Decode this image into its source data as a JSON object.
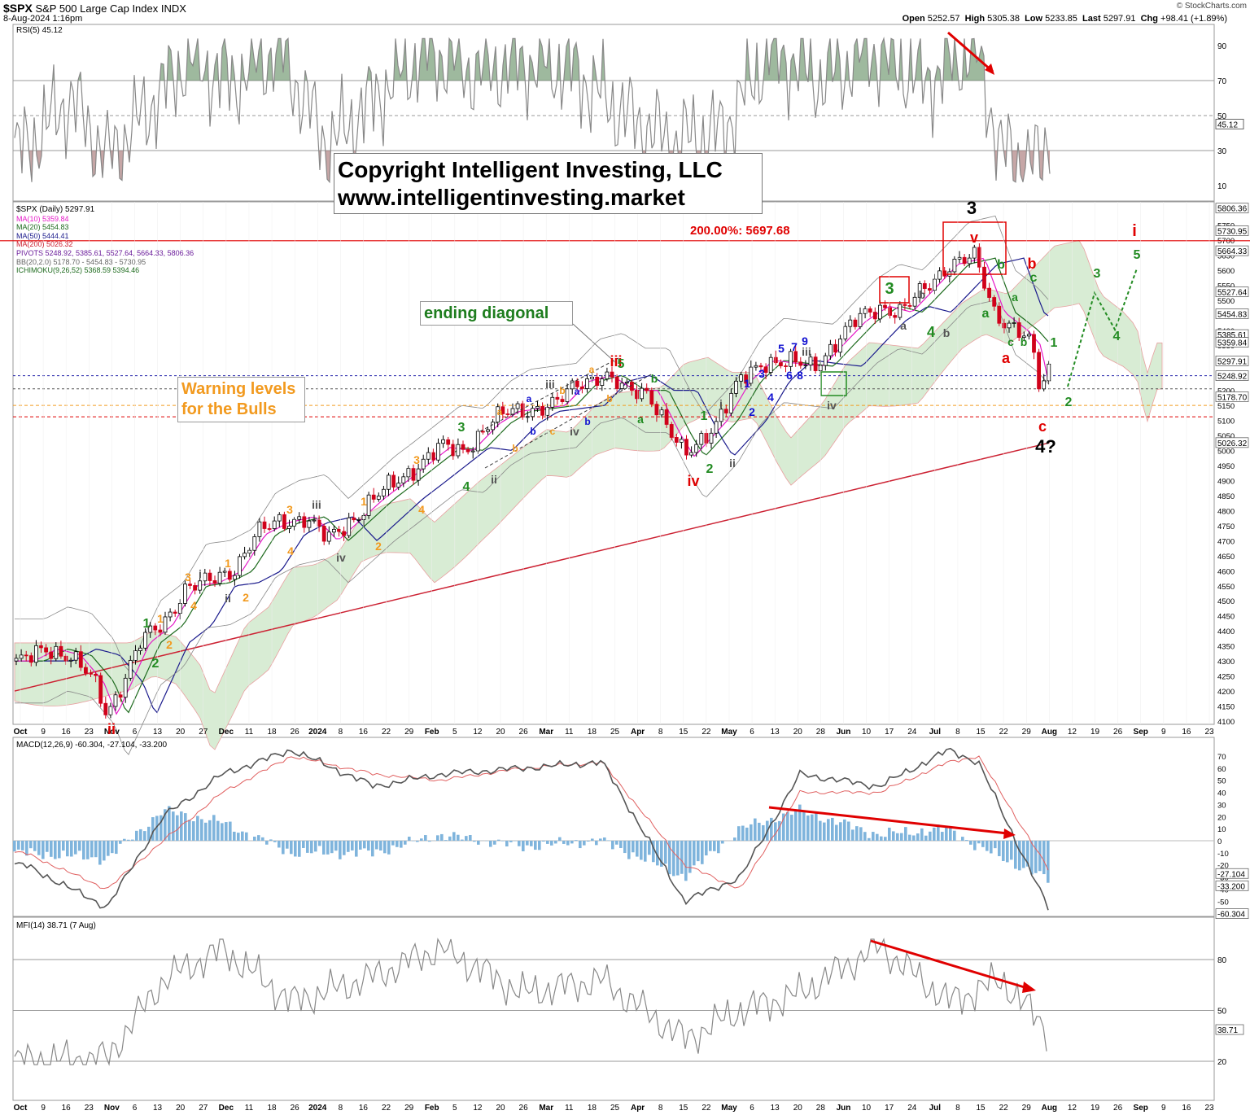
{
  "header": {
    "symbol": "$SPX",
    "name": "S&P 500 Large Cap Index",
    "exchange": "INDX",
    "date": "8-Aug-2024 1:16pm",
    "open_label": "Open",
    "open": "5252.57",
    "high_label": "High",
    "high": "5305.38",
    "low_label": "Low",
    "low": "5233.85",
    "last_label": "Last",
    "last": "5297.91",
    "chg_label": "Chg",
    "chg": "+98.41 (+1.89%)",
    "brand": "© StockCharts.com"
  },
  "copyright": {
    "line1": "Copyright Intelligent Investing, LLC",
    "line2": "www.intelligentinvesting.market"
  },
  "boxes": {
    "ending_diagonal": "ending diagonal",
    "warning_line1": "Warning levels",
    "warning_line2": "for the Bulls"
  },
  "colors": {
    "up": "#000000",
    "down": "#d0021b",
    "ma10": "#e619c8",
    "ma20": "#1e6b1e",
    "ma50": "#1a1a8c",
    "ma200": "#cc2233",
    "bb": "#888888",
    "cloud": "#d8ecd4",
    "hist": "#7fb4dc",
    "wave_red": "#e00000",
    "wave_green": "#228b22",
    "wave_orange": "#f29a1f",
    "wave_blue": "#1010d0",
    "wave_grey": "#555555"
  },
  "chart_data": [
    {
      "type": "line",
      "panel": "RSI",
      "label": "RSI(5) 45.12",
      "ylim": [
        0,
        100
      ],
      "ticks": [
        10,
        30,
        50,
        70,
        90
      ],
      "current_value_label": "45.12",
      "x": [
        "2023-10-02",
        "2023-10-16",
        "2023-10-27",
        "2023-11-06",
        "2023-11-20",
        "2023-12-04",
        "2023-12-18",
        "2024-01-02",
        "2024-01-16",
        "2024-02-01",
        "2024-02-15",
        "2024-03-01",
        "2024-03-15",
        "2024-04-01",
        "2024-04-15",
        "2024-04-30",
        "2024-05-15",
        "2024-05-31",
        "2024-06-14",
        "2024-07-01",
        "2024-07-16",
        "2024-07-24",
        "2024-08-05",
        "2024-08-08"
      ],
      "values": [
        30,
        60,
        25,
        48,
        82,
        70,
        88,
        32,
        60,
        88,
        75,
        80,
        78,
        50,
        35,
        40,
        88,
        70,
        88,
        70,
        90,
        28,
        22,
        45.12
      ]
    },
    {
      "type": "candlestick",
      "panel": "Price",
      "label": "$SPX (Daily) 5297.91",
      "ylim": [
        4100,
        5800
      ],
      "ticks": [
        4100,
        4150,
        4200,
        4250,
        4300,
        4350,
        4400,
        4450,
        4500,
        4550,
        4600,
        4650,
        4700,
        4750,
        4800,
        4850,
        4900,
        4950,
        5000,
        5050,
        5100,
        5150,
        5200,
        5250,
        5300,
        5350,
        5400,
        5450,
        5500,
        5550,
        5600,
        5650,
        5700,
        5750,
        5800
      ],
      "right_labels": [
        "5806.36",
        "5730.95",
        "5664.33",
        "5527.64",
        "5454.83",
        "5385.61",
        "5359.84",
        "5297.91",
        "5248.92",
        "5178.70",
        "5026.32"
      ],
      "legend": [
        "$SPX (Daily) 5297.91",
        "MA(10) 5359.84",
        "MA(20) 5454.83",
        "MA(50) 5444.41",
        "MA(200) 5026.32",
        "PIVOTS 5248.92, 5385.61, 5527.64, 5664.33, 5806.36",
        "BB(20,2.0) 5178.70 - 5454.83 - 5730.95",
        "ICHIMOKU(9,26,52) 5368.59 5394.46"
      ],
      "fib_label": "200.00%: 5697.68",
      "fib_level": 5697.68,
      "pivot_levels": [
        5248.92,
        5178.7
      ],
      "warning_levels": [
        5150,
        5110
      ],
      "x": [
        "2023-10-02",
        "2023-10-09",
        "2023-10-16",
        "2023-10-23",
        "2023-10-27",
        "2023-11-06",
        "2023-11-13",
        "2023-11-20",
        "2023-11-27",
        "2023-12-04",
        "2023-12-11",
        "2023-12-18",
        "2023-12-26",
        "2024-01-02",
        "2024-01-08",
        "2024-01-16",
        "2024-01-22",
        "2024-01-29",
        "2024-02-05",
        "2024-02-12",
        "2024-02-20",
        "2024-02-26",
        "2024-03-04",
        "2024-03-11",
        "2024-03-18",
        "2024-03-25",
        "2024-04-01",
        "2024-04-08",
        "2024-04-15",
        "2024-04-19",
        "2024-04-29",
        "2024-05-06",
        "2024-05-13",
        "2024-05-20",
        "2024-05-28",
        "2024-06-03",
        "2024-06-10",
        "2024-06-17",
        "2024-06-24",
        "2024-07-01",
        "2024-07-08",
        "2024-07-16",
        "2024-07-22",
        "2024-07-29",
        "2024-08-02",
        "2024-08-05",
        "2024-08-08"
      ],
      "values": [
        4300,
        4340,
        4320,
        4230,
        4120,
        4360,
        4420,
        4550,
        4560,
        4600,
        4720,
        4760,
        4780,
        4700,
        4760,
        4840,
        4890,
        4950,
        5010,
        5000,
        5090,
        5130,
        5140,
        5150,
        5230,
        5250,
        5200,
        5200,
        5050,
        4980,
        5100,
        5230,
        5300,
        5290,
        5280,
        5350,
        5430,
        5480,
        5460,
        5540,
        5620,
        5640,
        5460,
        5400,
        5350,
        5190,
        5297.91
      ]
    },
    {
      "type": "bar+line",
      "panel": "MACD",
      "label": "MACD(12,26,9) -60.304, -27.104, -33.200",
      "ylim": [
        -60,
        80
      ],
      "ticks": [
        -50,
        -40,
        -30,
        -20,
        -10,
        0,
        10,
        20,
        30,
        40,
        50,
        60,
        70
      ],
      "right_labels": [
        "-27.104",
        "-33.200",
        "-60.304"
      ],
      "x": [
        "2023-10-02",
        "2023-10-27",
        "2023-11-13",
        "2023-12-01",
        "2023-12-22",
        "2024-01-16",
        "2024-02-05",
        "2024-03-01",
        "2024-03-25",
        "2024-04-19",
        "2024-05-06",
        "2024-05-24",
        "2024-06-17",
        "2024-07-08",
        "2024-07-17",
        "2024-08-08"
      ],
      "macd": [
        -20,
        -55,
        20,
        55,
        75,
        45,
        55,
        60,
        65,
        -50,
        -30,
        55,
        45,
        75,
        65,
        -60.304
      ],
      "signal": [
        -10,
        -40,
        0,
        40,
        70,
        55,
        50,
        60,
        65,
        -20,
        -40,
        40,
        40,
        65,
        70,
        -27.104
      ],
      "histogram": [
        -10,
        -15,
        25,
        15,
        -10,
        -10,
        5,
        -5,
        0,
        -30,
        10,
        25,
        5,
        10,
        -5,
        -33.2
      ]
    },
    {
      "type": "line",
      "panel": "MFI",
      "label": "MFI(14) 38.71 (7 Aug)",
      "ylim": [
        15,
        95
      ],
      "ticks": [
        20,
        50,
        80
      ],
      "current_value_label": "38.71",
      "x": [
        "2023-10-02",
        "2023-10-27",
        "2023-11-13",
        "2023-12-01",
        "2023-12-22",
        "2024-01-16",
        "2024-02-05",
        "2024-03-01",
        "2024-03-25",
        "2024-04-19",
        "2024-05-06",
        "2024-05-24",
        "2024-06-17",
        "2024-07-08",
        "2024-07-24",
        "2024-08-07"
      ],
      "values": [
        20,
        22,
        68,
        86,
        55,
        70,
        87,
        60,
        68,
        33,
        50,
        60,
        88,
        55,
        68,
        38.71
      ]
    }
  ],
  "x_axis": {
    "labels": [
      "Oct",
      "9",
      "16",
      "23",
      "Nov",
      "6",
      "13",
      "20",
      "27",
      "Dec",
      "11",
      "18",
      "26",
      "2024",
      "8",
      "16",
      "22",
      "29",
      "Feb",
      "5",
      "12",
      "20",
      "26",
      "Mar",
      "11",
      "18",
      "25",
      "Apr",
      "8",
      "15",
      "22",
      "May",
      "6",
      "13",
      "20",
      "28",
      "Jun",
      "10",
      "17",
      "24",
      "Jul",
      "8",
      "15",
      "22",
      "29",
      "Aug",
      "12",
      "19",
      "26",
      "Sep",
      "9",
      "16",
      "23"
    ]
  },
  "waves": {
    "red": [
      "ii",
      "iii",
      "iv",
      "v",
      "3",
      "a",
      "b",
      "c",
      "i",
      "200.00%: 5697.68"
    ],
    "black": [
      "3",
      "4?"
    ],
    "green": [
      "1",
      "2",
      "3",
      "4",
      "5",
      "a",
      "b",
      "c",
      "1",
      "2",
      "3",
      "4",
      "5"
    ],
    "grey": [
      "i",
      "ii",
      "iii",
      "iv",
      "i",
      "ii",
      "iii",
      "iv",
      "a",
      "b"
    ],
    "orange": [
      "1",
      "2",
      "3",
      "4",
      "a",
      "b",
      "c"
    ],
    "blue": [
      "1",
      "2",
      "3",
      "4",
      "5",
      "6",
      "7",
      "8",
      "9",
      "a",
      "b"
    ]
  }
}
